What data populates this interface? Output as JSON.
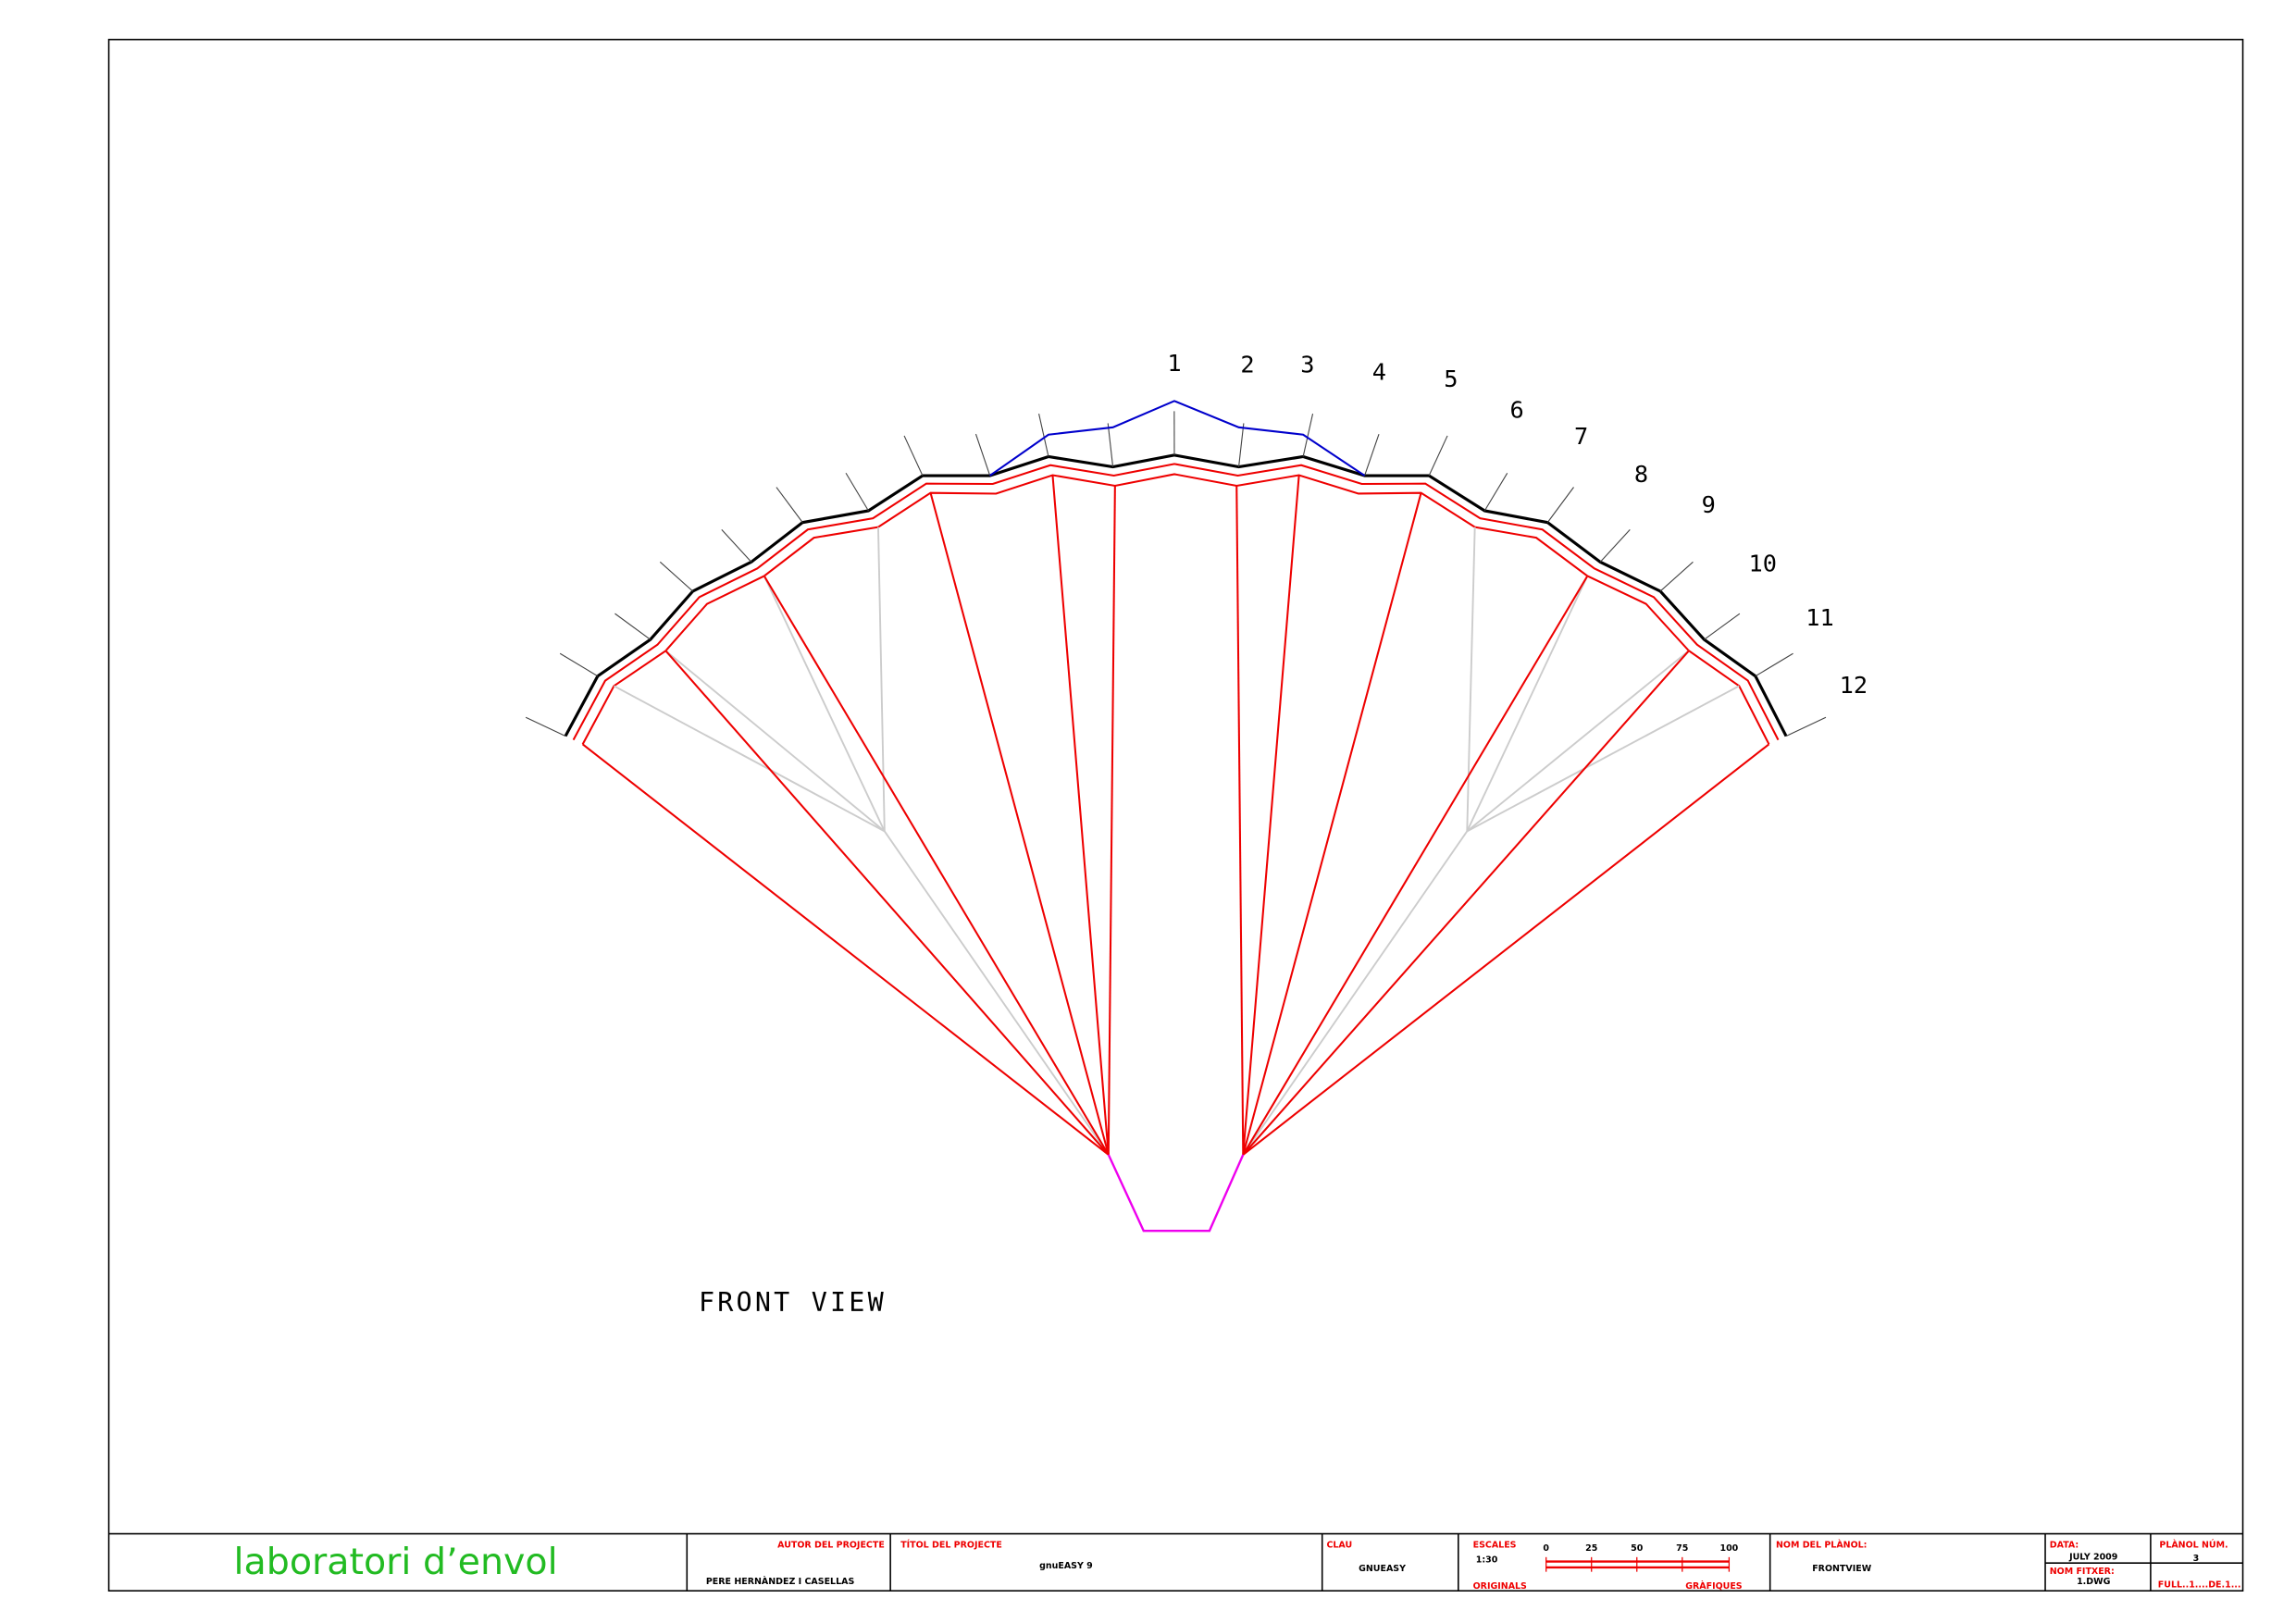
{
  "drawing": {
    "rib_labels": [
      "1",
      "2",
      "3",
      "4",
      "5",
      "6",
      "7",
      "8",
      "9",
      "10",
      "11",
      "12"
    ],
    "view_title": "FRONT VIEW"
  },
  "title_block": {
    "company": "laboratori d’envol",
    "author_label": "AUTOR DEL PROJECTE",
    "author": "PERE HERNÀNDEZ I CASELLAS",
    "project_label": "TÍTOL DEL PROJECTE",
    "project": "gnuEASY 9",
    "key_label": "CLAU",
    "key": "GNUEASY",
    "scales_label": "ESCALES",
    "scale": "1:30",
    "originals_label": "ORIGINALS",
    "graphics_label": "GRÀFIQUES",
    "scale_ticks": [
      "0",
      "25",
      "50",
      "75",
      "100"
    ],
    "plan_name_label": "NOM DEL PLÀNOL:",
    "plan_name": "FRONTVIEW",
    "date_label": "DATA:",
    "date": "JULY 2009",
    "file_label": "NOM FITXER:",
    "file": "1.DWG",
    "plan_number_label": "PLÀNOL NÚM.",
    "plan_number": "3",
    "sheet": "FULL..1....DE.1..."
  }
}
